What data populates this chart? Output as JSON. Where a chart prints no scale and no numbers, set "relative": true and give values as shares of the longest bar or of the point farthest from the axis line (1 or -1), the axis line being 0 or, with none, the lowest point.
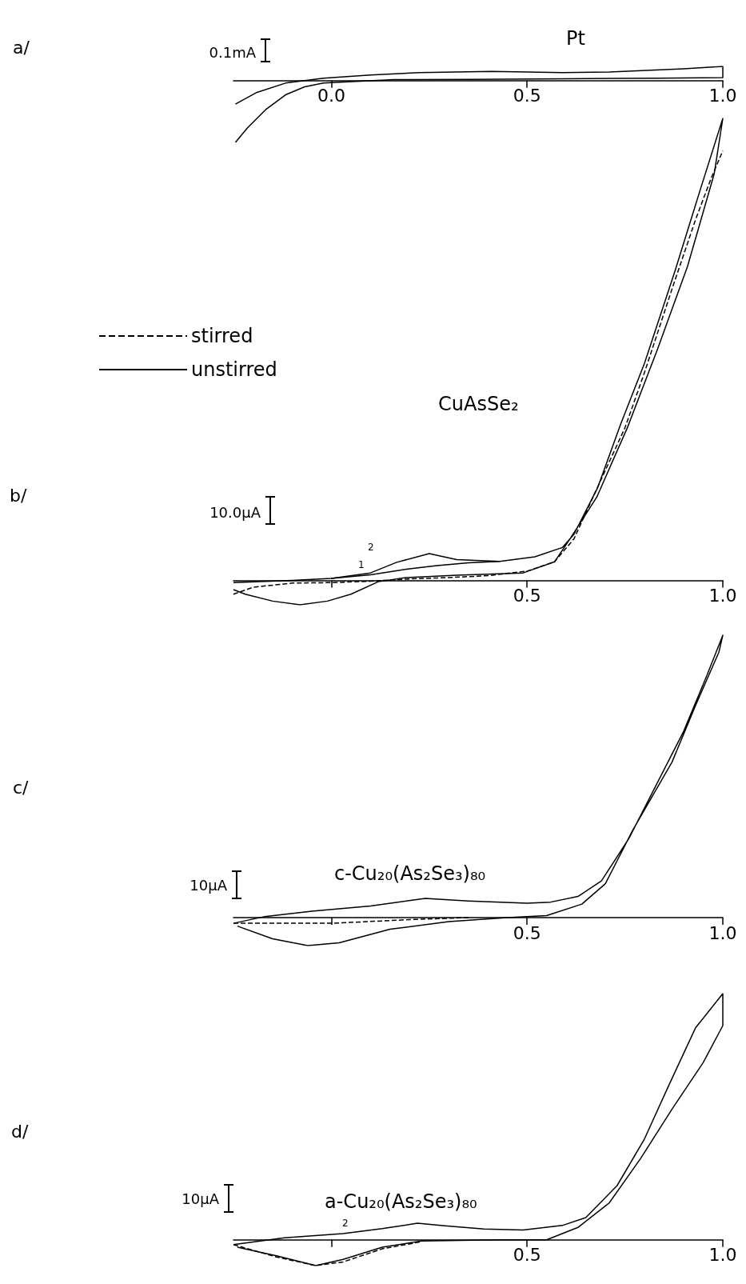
{
  "chart_data": [
    {
      "type": "line",
      "title": "Pt",
      "annotations": [
        "a/"
      ],
      "ylabel": "0.1mA",
      "relative": true,
      "marker": "none",
      "xlim": [
        -0.25,
        1.0
      ],
      "xticks": [
        {
          "value": 0,
          "label": "0.0"
        },
        {
          "value": 0.5,
          "label": "0.5"
        },
        {
          "value": 1,
          "label": "1.0"
        }
      ],
      "series": [
        {
          "color": "#000000",
          "line_style": "solid",
          "x": [
            -0.245,
            -0.215,
            -0.166,
            -0.117,
            -0.068,
            -0.02,
            0.054,
            0.16,
            0.35,
            0.59,
            0.835,
            1.0,
            1.0,
            0.9,
            0.71,
            0.59,
            0.41,
            0.225,
            0.1,
            -0.02,
            -0.117,
            -0.19,
            -0.245
          ],
          "values": [
            -1,
            -0.77,
            -0.46,
            -0.23,
            -0.1,
            -0.04,
            -0.015,
            0.015,
            0.02,
            0.03,
            0.04,
            0.05,
            0.23,
            0.19,
            0.14,
            0.13,
            0.15,
            0.13,
            0.09,
            0.04,
            -0.04,
            -0.19,
            -0.38
          ]
        }
      ]
    },
    {
      "type": "line",
      "title": "CuAsSe₂",
      "ylabel": "10.0µA",
      "relative": true,
      "marker": "none",
      "legend": "left",
      "xlim": [
        -0.25,
        1.0
      ],
      "xticks": [
        {
          "value": 0,
          "label": null
        },
        {
          "value": 0.5,
          "label": "0.5"
        },
        {
          "value": 1,
          "label": "1.0"
        }
      ],
      "annotations": [
        "b/",
        "2",
        "1"
      ],
      "series": [
        {
          "name": "stirred",
          "color": "#000000",
          "line_style": "dashed",
          "x": [
            -0.25,
            -0.2,
            -0.1,
            0.0,
            0.1,
            0.2,
            0.3,
            0.4,
            0.5,
            0.57,
            0.62,
            0.69,
            0.75,
            0.8,
            0.87,
            0.93,
            0.97,
            1.0
          ],
          "values": [
            -0.03,
            -0.015,
            -0.006,
            -0.005,
            -0.002,
            0.003,
            0.006,
            0.01,
            0.02,
            0.04,
            0.09,
            0.22,
            0.33,
            0.45,
            0.63,
            0.78,
            0.87,
            0.93
          ]
        },
        {
          "name": "unstirred",
          "color": "#000000",
          "line_style": "solid",
          "x": [
            -0.25,
            -0.1,
            0.0,
            0.1,
            0.167,
            0.25,
            0.32,
            0.43,
            0.52,
            0.59,
            0.62,
            0.68,
            0.74,
            0.8,
            0.878,
            0.944,
            1.0,
            0.978,
            0.91,
            0.833,
            0.756,
            0.678,
            0.61,
            0.57,
            0.49,
            0.32,
            0.19,
            0.12,
            0.05,
            -0.01,
            -0.08,
            -0.15,
            -0.22,
            -0.25
          ],
          "values": [
            -0.005,
            0.0,
            0.004,
            0.016,
            0.039,
            0.058,
            0.045,
            0.041,
            0.051,
            0.071,
            0.1,
            0.2,
            0.34,
            0.47,
            0.67,
            0.85,
            1.0,
            0.88,
            0.68,
            0.5,
            0.33,
            0.18,
            0.09,
            0.04,
            0.016,
            0.011,
            0.006,
            -0.003,
            -0.03,
            -0.045,
            -0.053,
            -0.045,
            -0.03,
            -0.02
          ]
        },
        {
          "color": "#000000",
          "line_style": "solid",
          "x": [
            0.0,
            0.1,
            0.2,
            0.27,
            0.35,
            0.43
          ],
          "values": [
            0.004,
            0.012,
            0.025,
            0.032,
            0.038,
            0.041
          ]
        }
      ]
    },
    {
      "type": "line",
      "title": "c-Cu₂₀(As₂Se₃)₈₀",
      "annotations": [
        "c/"
      ],
      "ylabel": "10µA",
      "relative": true,
      "marker": "none",
      "xlim": [
        -0.25,
        1.0
      ],
      "xticks": [
        {
          "value": 0,
          "label": null
        },
        {
          "value": 0.5,
          "label": "0.5"
        },
        {
          "value": 1,
          "label": "1.0"
        }
      ],
      "series": [
        {
          "color": "#000000",
          "line_style": "dashed",
          "x": [
            -0.25,
            0.0,
            0.2,
            0.35
          ],
          "values": [
            -0.02,
            -0.02,
            -0.007,
            0.0
          ]
        },
        {
          "color": "#000000",
          "line_style": "solid",
          "x": [
            -0.25,
            -0.17,
            -0.05,
            0.1,
            0.24,
            0.35,
            0.5,
            0.56,
            0.63,
            0.69,
            0.76,
            0.83,
            0.9,
            0.96,
            1.0,
            0.99,
            0.93,
            0.87,
            0.77,
            0.7,
            0.64,
            0.55,
            0.45,
            0.3,
            0.15,
            0.02,
            -0.06,
            -0.15,
            -0.24
          ],
          "values": [
            -0.02,
            0.004,
            0.023,
            0.041,
            0.068,
            0.059,
            0.051,
            0.055,
            0.075,
            0.13,
            0.28,
            0.47,
            0.66,
            0.86,
            1.0,
            0.94,
            0.75,
            0.55,
            0.31,
            0.12,
            0.048,
            0.007,
            0.0,
            -0.014,
            -0.041,
            -0.089,
            -0.099,
            -0.075,
            -0.03
          ]
        }
      ]
    },
    {
      "type": "line",
      "title": "a-Cu₂₀(As₂Se₃)₈₀",
      "ylabel": "10µA",
      "relative": true,
      "marker": "none",
      "xlim": [
        -0.25,
        1.0
      ],
      "xticks": [
        {
          "value": 0,
          "label": null
        },
        {
          "value": 0.5,
          "label": "0.5"
        },
        {
          "value": 1,
          "label": "1.0"
        }
      ],
      "annotations": [
        "d/",
        "2"
      ],
      "series": [
        {
          "color": "#000000",
          "line_style": "dashed",
          "x": [
            -0.25,
            -0.14,
            -0.04,
            0.03,
            0.13,
            0.23
          ],
          "values": [
            -0.02,
            -0.07,
            -0.105,
            -0.09,
            -0.037,
            -0.008
          ]
        },
        {
          "color": "#000000",
          "line_style": "solid",
          "x": [
            -0.25,
            -0.12,
            0.03,
            0.13,
            0.22,
            0.29,
            0.39,
            0.49,
            0.59,
            0.65,
            0.73,
            0.8,
            0.86,
            0.93,
            1.0,
            1.0,
            0.95,
            0.87,
            0.79,
            0.71,
            0.63,
            0.55,
            0.43,
            0.23,
            0.13,
            0.03,
            -0.04,
            -0.14,
            -0.24
          ],
          "values": [
            -0.02,
            0.008,
            0.025,
            0.045,
            0.067,
            0.057,
            0.044,
            0.04,
            0.058,
            0.09,
            0.22,
            0.41,
            0.62,
            0.86,
            1.0,
            0.87,
            0.72,
            0.53,
            0.33,
            0.15,
            0.05,
            0.0,
            0.0,
            -0.005,
            -0.03,
            -0.08,
            -0.105,
            -0.065,
            -0.03
          ]
        }
      ]
    }
  ]
}
